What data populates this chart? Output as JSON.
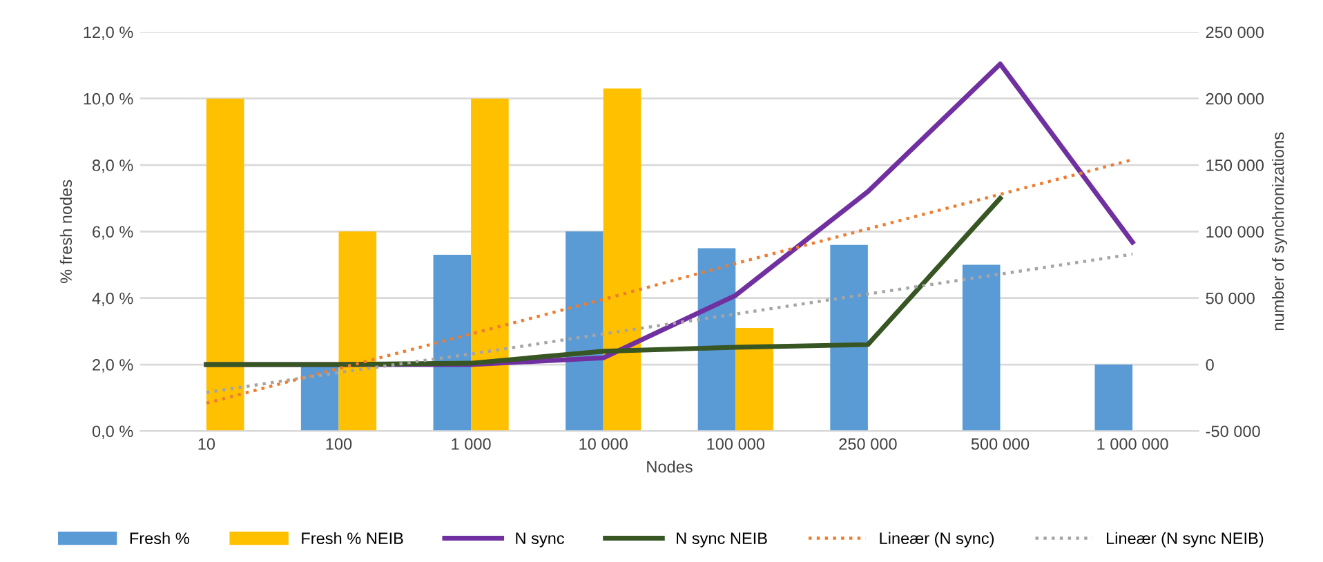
{
  "chart_data": {
    "type": "bar",
    "xlabel": "Nodes",
    "ylabel": "% fresh nodes",
    "y2label": "number of synchronizations",
    "categories": [
      "10",
      "100",
      "1 000",
      "10 000",
      "100 000",
      "250 000",
      "500 000",
      "1 000 000"
    ],
    "series": [
      {
        "name": "Fresh %",
        "color": "#5b9bd5",
        "values": [
          null,
          2.0,
          5.3,
          6.0,
          5.5,
          5.6,
          5.0,
          2.0
        ]
      },
      {
        "name": "Fresh % NEIB",
        "color": "#ffc000",
        "values": [
          10.0,
          6.0,
          10.0,
          10.3,
          3.1,
          null,
          null,
          null
        ]
      },
      {
        "name": "N sync",
        "type": "line",
        "axis": "y2",
        "color": "#7030a0",
        "line_style": "solid",
        "values": [
          0,
          0,
          0,
          5000,
          52000,
          130000,
          226000,
          92000
        ]
      },
      {
        "name": "N sync NEIB",
        "type": "line",
        "axis": "y2",
        "color": "#375623",
        "line_style": "solid",
        "values": [
          0,
          0,
          1000,
          10000,
          13000,
          15000,
          125000,
          null
        ]
      },
      {
        "name": "Lineær (N sync)",
        "type": "line",
        "axis": "y2",
        "color": "#ed7d31",
        "line_style": "dotted",
        "values": [
          -29000,
          -3000,
          23000,
          49000,
          76000,
          102000,
          128000,
          154000
        ]
      },
      {
        "name": "Lineær (N sync NEIB)",
        "type": "line",
        "axis": "y2",
        "color": "#a5a5a5",
        "line_style": "dotted",
        "values": [
          -21000,
          -6000,
          8000,
          23000,
          38000,
          53000,
          68000,
          83000
        ]
      }
    ],
    "ylim": [
      0,
      12
    ],
    "yticks": [
      {
        "value": 0,
        "label": "0,0 %"
      },
      {
        "value": 2,
        "label": "2,0 %"
      },
      {
        "value": 4,
        "label": "4,0 %"
      },
      {
        "value": 6,
        "label": "6,0 %"
      },
      {
        "value": 8,
        "label": "8,0 %"
      },
      {
        "value": 10,
        "label": "10,0 %"
      },
      {
        "value": 12,
        "label": "12,0 %"
      }
    ],
    "y2lim": [
      -50000,
      250000
    ],
    "y2ticks": [
      {
        "value": -50000,
        "label": "-50 000"
      },
      {
        "value": 0,
        "label": "0"
      },
      {
        "value": 50000,
        "label": "50 000"
      },
      {
        "value": 100000,
        "label": "100 000"
      },
      {
        "value": 150000,
        "label": "150 000"
      },
      {
        "value": 200000,
        "label": "200 000"
      },
      {
        "value": 250000,
        "label": "250 000"
      }
    ],
    "grid": "y",
    "legend": "bottom"
  }
}
